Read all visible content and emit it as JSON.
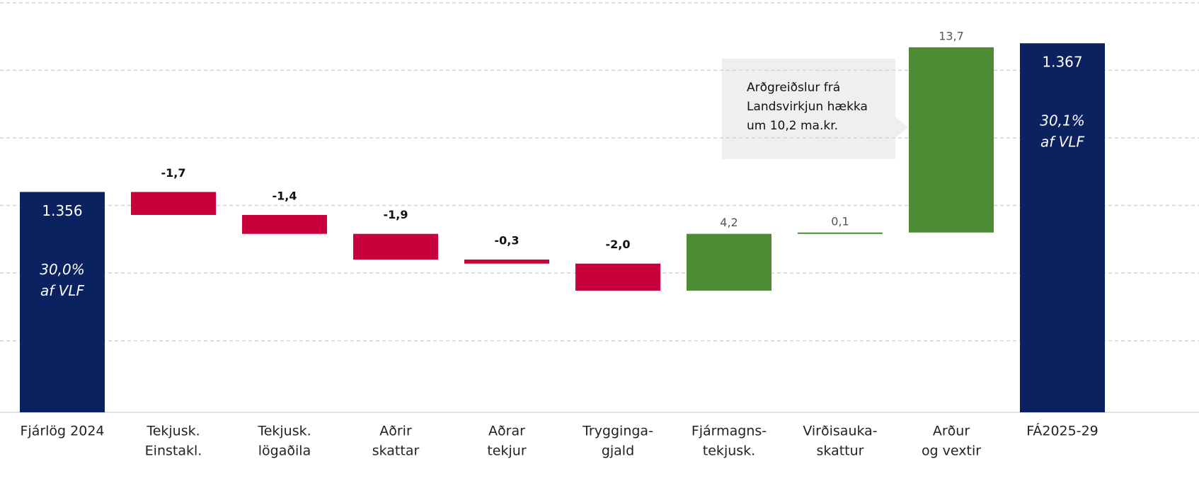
{
  "chart_data": {
    "type": "waterfall",
    "categories": [
      [
        "Fjárlög 2024"
      ],
      [
        "Tekjusk.",
        "Einstakl."
      ],
      [
        "Tekjusk.",
        "lögaðila"
      ],
      [
        "Aðrir",
        "skattar"
      ],
      [
        "Aðrar",
        "tekjur"
      ],
      [
        "Trygginga-",
        "gjald"
      ],
      [
        "Fjármagns-",
        "tekjusk."
      ],
      [
        "Virðisauka-",
        "skattur"
      ],
      [
        "Arður",
        "og vextir"
      ],
      [
        "FÁ2025-29"
      ]
    ],
    "values": [
      1356,
      -1.7,
      -1.4,
      -1.9,
      -0.3,
      -2.0,
      4.2,
      0.1,
      13.7,
      1367
    ],
    "value_labels": [
      "1.356",
      "-1,7",
      "-1,4",
      "-1,9",
      "-0,3",
      "-2,0",
      "4,2",
      "0,1",
      "13,7",
      "1.367"
    ],
    "measure": [
      "total",
      "relative",
      "relative",
      "relative",
      "relative",
      "relative",
      "relative",
      "relative",
      "relative",
      "total"
    ],
    "inner_labels": [
      [
        "30,0%",
        "af VLF"
      ],
      null,
      null,
      null,
      null,
      null,
      null,
      null,
      null,
      [
        "30,1%",
        "af VLF"
      ]
    ],
    "colors": {
      "total": "#0b2160",
      "negative": "#c8003c",
      "positive": "#4f8a35"
    },
    "annotation": {
      "lines": [
        "Arðgreiðslur frá",
        "Landsvirkjun hækka",
        "um 10,2 ma.kr."
      ],
      "category": 8
    },
    "ylim": [
      1339.7,
      1370.2
    ],
    "yticks": [
      1345,
      1350,
      1355,
      1360,
      1365,
      1370
    ],
    "grid": true
  }
}
